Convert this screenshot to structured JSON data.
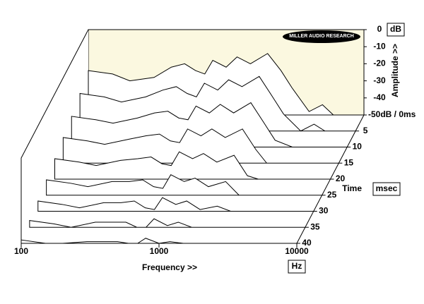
{
  "chart_data": {
    "type": "waterfall",
    "title_logo": "MILLER AUDIO RESEARCH",
    "x_label": "Frequency >>",
    "x_unit": "Hz",
    "y_label": "Amplitude >>",
    "y_unit": "dB",
    "z_label": "Time",
    "z_unit": "msec",
    "x": [
      100,
      150,
      200,
      300,
      400,
      500,
      600,
      700,
      800,
      1000,
      1200,
      1500,
      2000,
      2500,
      3000,
      4000,
      5000,
      6000,
      8000,
      10000
    ],
    "z": [
      0,
      5,
      10,
      15,
      20,
      25,
      30,
      35,
      40
    ],
    "series": [
      {
        "values": [
          -24,
          -26,
          -30,
          -28,
          -22,
          -20,
          -24,
          -26,
          -18,
          -22,
          -16,
          -20,
          -14,
          -24,
          -34,
          -48,
          -44,
          -50,
          -50,
          -50
        ]
      },
      {
        "values": [
          -28,
          -30,
          -33,
          -30,
          -26,
          -24,
          -28,
          -30,
          -22,
          -26,
          -20,
          -24,
          -18,
          -30,
          -40,
          -50,
          -46,
          -50,
          -50,
          -50
        ]
      },
      {
        "values": [
          -32,
          -34,
          -36,
          -33,
          -30,
          -29,
          -33,
          -34,
          -26,
          -30,
          -25,
          -30,
          -24,
          -36,
          -46,
          -50,
          -50,
          -50,
          -50,
          -50
        ]
      },
      {
        "values": [
          -35,
          -37,
          -39,
          -36,
          -34,
          -33,
          -37,
          -38,
          -30,
          -34,
          -30,
          -35,
          -30,
          -42,
          -50,
          -50,
          -50,
          -50,
          -50,
          -50
        ]
      },
      {
        "values": [
          -38,
          -40,
          -42,
          -39,
          -38,
          -37,
          -41,
          -42,
          -34,
          -38,
          -35,
          -40,
          -36,
          -48,
          -50,
          -50,
          -50,
          -50,
          -50,
          -50
        ]
      },
      {
        "values": [
          -41,
          -43,
          -45,
          -42,
          -42,
          -41,
          -45,
          -46,
          -38,
          -42,
          -40,
          -45,
          -42,
          -50,
          -50,
          -50,
          -50,
          -50,
          -50,
          -50
        ]
      },
      {
        "values": [
          -44,
          -46,
          -48,
          -45,
          -45,
          -44,
          -48,
          -49,
          -42,
          -46,
          -44,
          -49,
          -47,
          -50,
          -50,
          -50,
          -50,
          -50,
          -50,
          -50
        ]
      },
      {
        "values": [
          -46,
          -48,
          -50,
          -47,
          -47,
          -47,
          -50,
          -50,
          -45,
          -49,
          -47,
          -50,
          -50,
          -50,
          -50,
          -50,
          -50,
          -50,
          -50,
          -50
        ]
      },
      {
        "values": [
          -48,
          -50,
          -50,
          -49,
          -49,
          -49,
          -50,
          -50,
          -47,
          -50,
          -49,
          -50,
          -50,
          -50,
          -50,
          -50,
          -50,
          -50,
          -50,
          -50
        ]
      }
    ],
    "xlim": [
      100,
      10000
    ],
    "xticks": [
      100,
      1000,
      10000
    ],
    "log_x": true,
    "ylim": [
      -50,
      0
    ],
    "yticks": [
      0,
      -10,
      -20,
      -30,
      -40,
      {
        "value": -50,
        "label": "-50dB / 0ms"
      }
    ],
    "zlim": [
      0,
      40
    ],
    "zticks": [
      5,
      10,
      15,
      20,
      25,
      30,
      35,
      40
    ],
    "back_color": "#fbf8e0"
  }
}
